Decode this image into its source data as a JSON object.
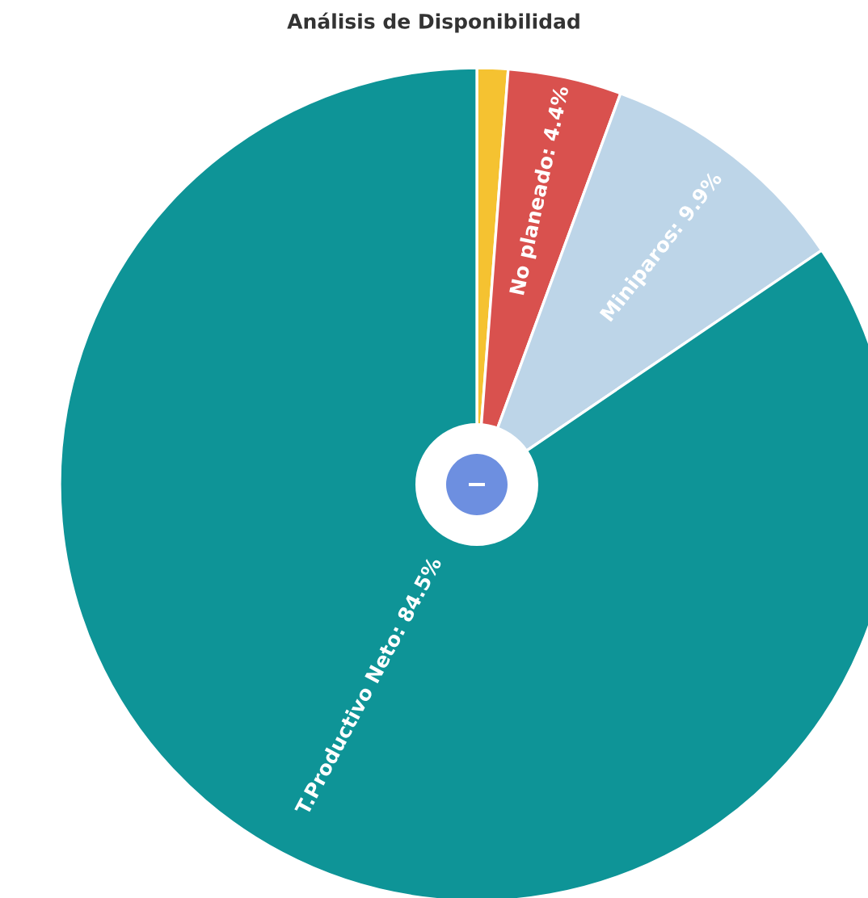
{
  "chart_data": {
    "type": "pie",
    "title": "Análisis de Disponibilidad",
    "categories": [
      null,
      "No planeado",
      "Miniparos",
      "T.Productivo Neto"
    ],
    "values": [
      1.2,
      4.4,
      9.9,
      84.5
    ],
    "colors": [
      "#f5c231",
      "#d9514e",
      "#bdd5e8",
      "#0e9497"
    ],
    "value_labels": [
      null,
      "4.4%",
      "9.9%",
      "84.5%"
    ]
  }
}
